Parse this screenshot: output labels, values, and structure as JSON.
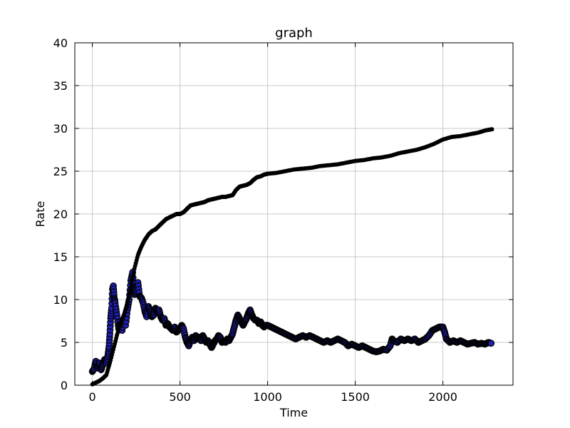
{
  "chart_data": {
    "type": "scatter",
    "title": "graph",
    "xlabel": "Time",
    "ylabel": "Rate",
    "xlim": [
      -100,
      2400
    ],
    "ylim": [
      0,
      40
    ],
    "xticks": [
      0,
      500,
      1000,
      1500,
      2000
    ],
    "yticks": [
      0,
      5,
      10,
      15,
      20,
      25,
      30,
      35,
      40
    ],
    "grid": true,
    "series": [
      {
        "color": "#1f1fb4",
        "edge": "#000000",
        "marker": "large-circle",
        "points": [
          [
            0,
            1.6
          ],
          [
            10,
            1.9
          ],
          [
            20,
            2.8
          ],
          [
            30,
            2.0
          ],
          [
            40,
            2.6
          ],
          [
            50,
            1.8
          ],
          [
            60,
            2.4
          ],
          [
            70,
            3.0
          ],
          [
            80,
            2.6
          ],
          [
            90,
            3.6
          ],
          [
            95,
            4.5
          ],
          [
            100,
            6.0
          ],
          [
            105,
            7.8
          ],
          [
            110,
            9.0
          ],
          [
            115,
            11.2
          ],
          [
            120,
            11.6
          ],
          [
            125,
            10.2
          ],
          [
            130,
            9.6
          ],
          [
            140,
            8.2
          ],
          [
            150,
            6.6
          ],
          [
            160,
            7.4
          ],
          [
            170,
            6.4
          ],
          [
            180,
            7.8
          ],
          [
            190,
            7.0
          ],
          [
            200,
            8.8
          ],
          [
            210,
            10.0
          ],
          [
            220,
            12.2
          ],
          [
            230,
            13.2
          ],
          [
            240,
            10.6
          ],
          [
            250,
            11.2
          ],
          [
            260,
            12.0
          ],
          [
            270,
            10.4
          ],
          [
            280,
            10.2
          ],
          [
            290,
            9.6
          ],
          [
            300,
            8.6
          ],
          [
            310,
            8.0
          ],
          [
            320,
            9.2
          ],
          [
            330,
            8.6
          ],
          [
            340,
            8.0
          ],
          [
            350,
            8.2
          ],
          [
            360,
            9.0
          ],
          [
            370,
            8.6
          ],
          [
            380,
            8.8
          ],
          [
            390,
            8.0
          ],
          [
            400,
            7.6
          ],
          [
            410,
            7.8
          ],
          [
            420,
            7.0
          ],
          [
            430,
            7.2
          ],
          [
            440,
            6.8
          ],
          [
            450,
            6.6
          ],
          [
            460,
            6.4
          ],
          [
            470,
            6.8
          ],
          [
            480,
            6.2
          ],
          [
            490,
            6.4
          ],
          [
            500,
            6.6
          ],
          [
            510,
            7.0
          ],
          [
            520,
            6.6
          ],
          [
            530,
            5.6
          ],
          [
            540,
            5.0
          ],
          [
            550,
            4.6
          ],
          [
            560,
            5.2
          ],
          [
            570,
            5.6
          ],
          [
            580,
            5.2
          ],
          [
            590,
            5.8
          ],
          [
            600,
            5.4
          ],
          [
            610,
            5.6
          ],
          [
            620,
            5.2
          ],
          [
            630,
            5.8
          ],
          [
            640,
            5.4
          ],
          [
            650,
            5.0
          ],
          [
            660,
            5.2
          ],
          [
            670,
            4.8
          ],
          [
            680,
            4.4
          ],
          [
            690,
            4.8
          ],
          [
            700,
            5.2
          ],
          [
            710,
            5.4
          ],
          [
            720,
            5.8
          ],
          [
            730,
            5.6
          ],
          [
            740,
            5.0
          ],
          [
            750,
            5.2
          ],
          [
            760,
            5.0
          ],
          [
            770,
            5.4
          ],
          [
            780,
            5.2
          ],
          [
            790,
            5.6
          ],
          [
            800,
            6.0
          ],
          [
            810,
            6.8
          ],
          [
            820,
            7.6
          ],
          [
            830,
            8.2
          ],
          [
            840,
            7.8
          ],
          [
            850,
            7.4
          ],
          [
            860,
            7.0
          ],
          [
            870,
            7.4
          ],
          [
            880,
            7.8
          ],
          [
            890,
            8.4
          ],
          [
            900,
            8.8
          ],
          [
            910,
            8.2
          ],
          [
            920,
            7.8
          ],
          [
            930,
            7.6
          ],
          [
            940,
            7.6
          ],
          [
            950,
            7.2
          ],
          [
            960,
            7.4
          ],
          [
            970,
            7.0
          ],
          [
            980,
            6.8
          ],
          [
            990,
            7.0
          ],
          [
            1000,
            7.0
          ],
          [
            1020,
            6.8
          ],
          [
            1040,
            6.6
          ],
          [
            1060,
            6.4
          ],
          [
            1080,
            6.2
          ],
          [
            1100,
            6.0
          ],
          [
            1120,
            5.8
          ],
          [
            1140,
            5.6
          ],
          [
            1160,
            5.4
          ],
          [
            1180,
            5.6
          ],
          [
            1200,
            5.8
          ],
          [
            1220,
            5.6
          ],
          [
            1240,
            5.8
          ],
          [
            1260,
            5.6
          ],
          [
            1280,
            5.4
          ],
          [
            1300,
            5.2
          ],
          [
            1320,
            5.0
          ],
          [
            1340,
            5.2
          ],
          [
            1360,
            5.0
          ],
          [
            1380,
            5.2
          ],
          [
            1400,
            5.4
          ],
          [
            1420,
            5.2
          ],
          [
            1440,
            5.0
          ],
          [
            1460,
            4.6
          ],
          [
            1480,
            4.8
          ],
          [
            1500,
            4.6
          ],
          [
            1520,
            4.4
          ],
          [
            1540,
            4.6
          ],
          [
            1560,
            4.4
          ],
          [
            1580,
            4.2
          ],
          [
            1600,
            4.0
          ],
          [
            1620,
            3.9
          ],
          [
            1640,
            4.0
          ],
          [
            1660,
            4.2
          ],
          [
            1680,
            4.1
          ],
          [
            1700,
            4.6
          ],
          [
            1710,
            5.4
          ],
          [
            1720,
            5.2
          ],
          [
            1740,
            5.0
          ],
          [
            1760,
            5.4
          ],
          [
            1780,
            5.2
          ],
          [
            1800,
            5.4
          ],
          [
            1820,
            5.2
          ],
          [
            1840,
            5.4
          ],
          [
            1860,
            5.0
          ],
          [
            1880,
            5.2
          ],
          [
            1900,
            5.4
          ],
          [
            1920,
            5.8
          ],
          [
            1940,
            6.4
          ],
          [
            1960,
            6.6
          ],
          [
            1980,
            6.8
          ],
          [
            2000,
            6.8
          ],
          [
            2010,
            6.2
          ],
          [
            2020,
            5.4
          ],
          [
            2040,
            5.0
          ],
          [
            2060,
            5.2
          ],
          [
            2080,
            5.0
          ],
          [
            2100,
            5.2
          ],
          [
            2120,
            5.0
          ],
          [
            2140,
            4.8
          ],
          [
            2160,
            4.9
          ],
          [
            2180,
            5.0
          ],
          [
            2200,
            4.8
          ],
          [
            2220,
            4.9
          ],
          [
            2240,
            4.8
          ],
          [
            2260,
            5.0
          ],
          [
            2275,
            4.9
          ]
        ]
      },
      {
        "color": "#000000",
        "edge": "#000000",
        "marker": "small-circle",
        "points": [
          [
            0,
            0.1
          ],
          [
            20,
            0.3
          ],
          [
            40,
            0.5
          ],
          [
            60,
            0.8
          ],
          [
            80,
            1.2
          ],
          [
            100,
            2.6
          ],
          [
            120,
            4.2
          ],
          [
            140,
            5.8
          ],
          [
            160,
            7.2
          ],
          [
            180,
            8.2
          ],
          [
            200,
            9.6
          ],
          [
            220,
            11.4
          ],
          [
            240,
            13.6
          ],
          [
            260,
            15.2
          ],
          [
            280,
            16.2
          ],
          [
            300,
            17.0
          ],
          [
            320,
            17.6
          ],
          [
            340,
            18.0
          ],
          [
            360,
            18.2
          ],
          [
            380,
            18.6
          ],
          [
            400,
            19.0
          ],
          [
            420,
            19.4
          ],
          [
            440,
            19.6
          ],
          [
            460,
            19.8
          ],
          [
            480,
            20.0
          ],
          [
            500,
            20.0
          ],
          [
            520,
            20.2
          ],
          [
            540,
            20.6
          ],
          [
            560,
            21.0
          ],
          [
            580,
            21.1
          ],
          [
            600,
            21.2
          ],
          [
            620,
            21.3
          ],
          [
            640,
            21.4
          ],
          [
            660,
            21.6
          ],
          [
            680,
            21.7
          ],
          [
            700,
            21.8
          ],
          [
            720,
            21.9
          ],
          [
            740,
            22.0
          ],
          [
            760,
            22.0
          ],
          [
            780,
            22.1
          ],
          [
            800,
            22.2
          ],
          [
            820,
            22.8
          ],
          [
            840,
            23.2
          ],
          [
            860,
            23.3
          ],
          [
            880,
            23.4
          ],
          [
            900,
            23.6
          ],
          [
            920,
            24.0
          ],
          [
            940,
            24.3
          ],
          [
            960,
            24.4
          ],
          [
            980,
            24.6
          ],
          [
            1000,
            24.7
          ],
          [
            1050,
            24.8
          ],
          [
            1100,
            25.0
          ],
          [
            1150,
            25.2
          ],
          [
            1200,
            25.3
          ],
          [
            1250,
            25.4
          ],
          [
            1300,
            25.6
          ],
          [
            1350,
            25.7
          ],
          [
            1400,
            25.8
          ],
          [
            1450,
            26.0
          ],
          [
            1500,
            26.2
          ],
          [
            1550,
            26.3
          ],
          [
            1600,
            26.5
          ],
          [
            1650,
            26.6
          ],
          [
            1700,
            26.8
          ],
          [
            1750,
            27.1
          ],
          [
            1800,
            27.3
          ],
          [
            1850,
            27.5
          ],
          [
            1900,
            27.8
          ],
          [
            1950,
            28.2
          ],
          [
            2000,
            28.7
          ],
          [
            2050,
            29.0
          ],
          [
            2100,
            29.1
          ],
          [
            2150,
            29.3
          ],
          [
            2200,
            29.5
          ],
          [
            2250,
            29.8
          ],
          [
            2280,
            29.9
          ]
        ]
      }
    ]
  }
}
